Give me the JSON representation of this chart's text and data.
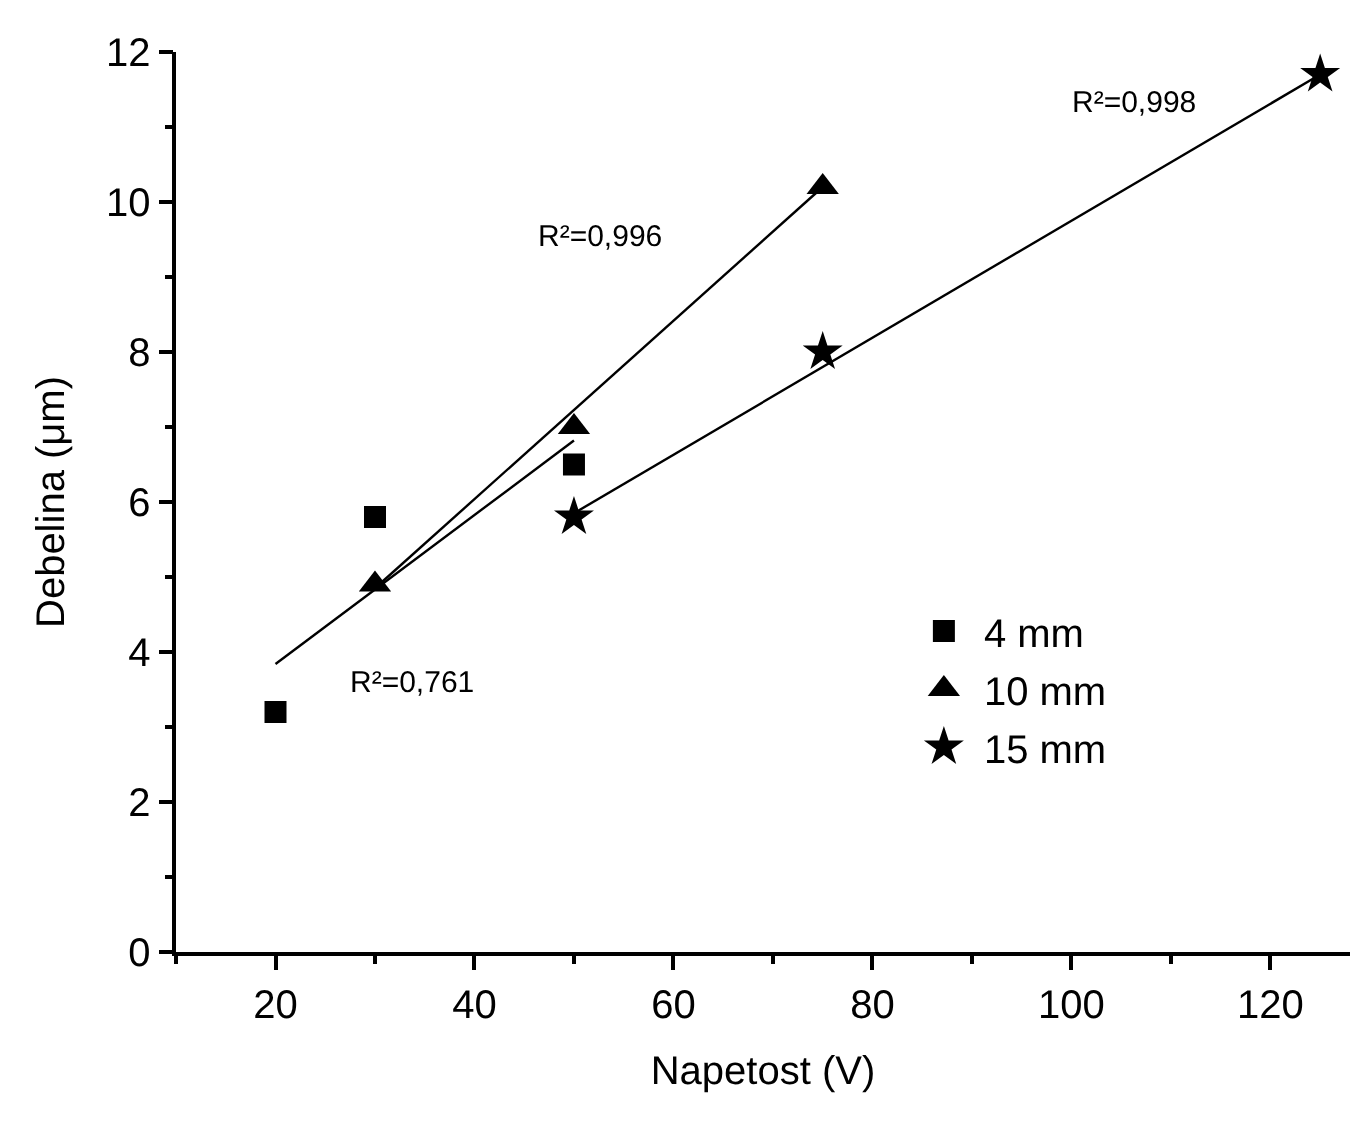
{
  "chart_data": {
    "type": "scatter",
    "xlabel": "Napetost (V)",
    "ylabel": "Debelina (μm)",
    "xlim": [
      10,
      128
    ],
    "ylim": [
      0,
      12
    ],
    "xticks": [
      20,
      40,
      60,
      80,
      100,
      120
    ],
    "yticks": [
      0,
      2,
      4,
      6,
      8,
      10,
      12
    ],
    "legend": "right",
    "series": [
      {
        "name": "4 mm",
        "color": "#000000",
        "marker": "square",
        "x": [
          20,
          30,
          50
        ],
        "values": [
          3.2,
          5.8,
          6.5
        ]
      },
      {
        "name": "10 mm",
        "color": "#000000",
        "marker": "triangle",
        "x": [
          30,
          50,
          75
        ],
        "values": [
          4.9,
          7.0,
          10.2
        ]
      },
      {
        "name": "15 mm",
        "color": "#000000",
        "marker": "star",
        "x": [
          50,
          75,
          125
        ],
        "values": [
          5.8,
          8.0,
          11.7
        ]
      },
      {
        "type": "line",
        "color": "#000000",
        "marker": "none",
        "x": [
          20,
          50
        ],
        "values": [
          3.84,
          6.82
        ]
      },
      {
        "type": "line",
        "color": "#000000",
        "marker": "none",
        "x": [
          30,
          75
        ],
        "values": [
          4.85,
          10.2
        ]
      },
      {
        "type": "line",
        "color": "#000000",
        "marker": "none",
        "x": [
          50,
          125
        ],
        "values": [
          5.85,
          11.7
        ]
      }
    ],
    "annotations": [
      "R²=0,761",
      "R²=0,996",
      "R²=0,998"
    ]
  }
}
